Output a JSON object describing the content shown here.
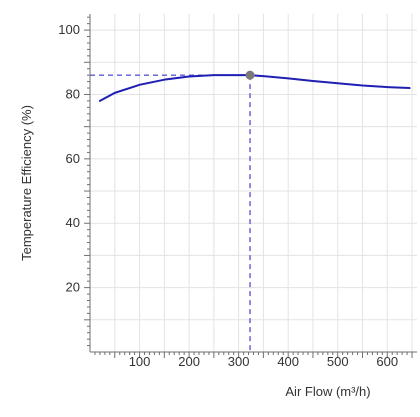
{
  "chart_data": {
    "type": "line",
    "title": "",
    "xlabel": "Air Flow (m³/h)",
    "ylabel": "Temperature Efficiency (%)",
    "xlim": [
      0,
      660
    ],
    "ylim": [
      0,
      105
    ],
    "x_ticks": [
      "100",
      "200",
      "300",
      "400",
      "500",
      "600"
    ],
    "y_ticks": [
      "20",
      "40",
      "60",
      "80",
      "100"
    ],
    "grid": true,
    "series": [
      {
        "x": [
          20,
          50,
          100,
          150,
          200,
          250,
          300,
          323,
          350,
          400,
          450,
          500,
          550,
          600,
          645
        ],
        "y": [
          78,
          80.5,
          83,
          84.6,
          85.6,
          86,
          86,
          86,
          85.7,
          85,
          84.2,
          83.5,
          82.8,
          82.3,
          82
        ],
        "color": "#1f1fb4"
      }
    ],
    "marker": {
      "x": 323,
      "y": 86,
      "color": "#7a7a7a"
    },
    "guide_color": "#5b5bd6",
    "axis_color": "#6f6f6f",
    "grid_color": "#e3e3e3"
  }
}
